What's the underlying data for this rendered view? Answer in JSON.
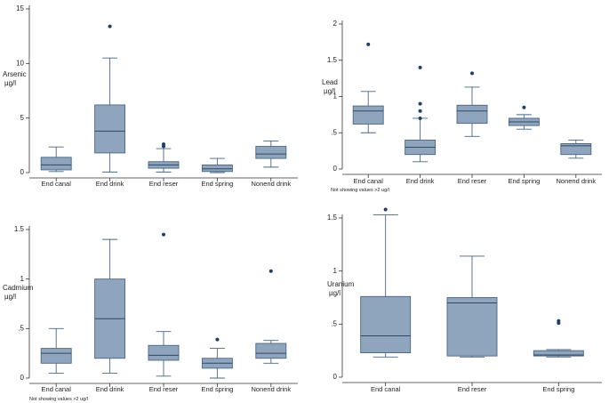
{
  "chart_data": [
    {
      "type": "box",
      "ylabel_lines": [
        "Arsenic",
        "µg/l"
      ],
      "yticks": [
        "0",
        "5",
        "10",
        "15"
      ],
      "ytick_values": [
        0,
        5,
        10,
        15
      ],
      "ylim": [
        0,
        15
      ],
      "note": "",
      "categories": [
        "End canal",
        "End drink",
        "End reser",
        "End spring",
        "Nonend drink"
      ],
      "boxes": [
        {
          "low": 0.1,
          "q1": 0.25,
          "median": 0.7,
          "q3": 1.4,
          "high": 2.35,
          "outliers": []
        },
        {
          "low": 0.05,
          "q1": 1.8,
          "median": 3.8,
          "q3": 6.2,
          "high": 10.5,
          "outliers": [
            13.4
          ]
        },
        {
          "low": 0.05,
          "q1": 0.4,
          "median": 0.7,
          "q3": 1.0,
          "high": 2.2,
          "outliers": [
            2.4,
            2.6
          ]
        },
        {
          "low": 0.0,
          "q1": 0.1,
          "median": 0.35,
          "q3": 0.7,
          "high": 1.3,
          "outliers": []
        },
        {
          "low": 0.5,
          "q1": 1.3,
          "median": 1.7,
          "q3": 2.4,
          "high": 2.9,
          "outliers": []
        }
      ]
    },
    {
      "type": "box",
      "ylabel_lines": [
        "Lead",
        "µg/l"
      ],
      "yticks": [
        "0",
        ".5",
        "1",
        "1.5",
        "2"
      ],
      "ytick_values": [
        0,
        0.5,
        1,
        1.5,
        2
      ],
      "ylim": [
        0,
        2
      ],
      "note": "Not showing values >2 ug/l",
      "categories": [
        "End canal",
        "End drink",
        "End reser",
        "End spring",
        "Nonend drink"
      ],
      "boxes": [
        {
          "low": 0.5,
          "q1": 0.62,
          "median": 0.8,
          "q3": 0.87,
          "high": 1.07,
          "outliers": [
            1.72
          ]
        },
        {
          "low": 0.1,
          "q1": 0.2,
          "median": 0.3,
          "q3": 0.4,
          "high": 0.7,
          "outliers": [
            0.7,
            0.8,
            0.9,
            1.4
          ]
        },
        {
          "low": 0.45,
          "q1": 0.63,
          "median": 0.8,
          "q3": 0.88,
          "high": 1.13,
          "outliers": [
            1.32
          ]
        },
        {
          "low": 0.55,
          "q1": 0.6,
          "median": 0.65,
          "q3": 0.7,
          "high": 0.75,
          "outliers": [
            0.85
          ]
        },
        {
          "low": 0.15,
          "q1": 0.2,
          "median": 0.32,
          "q3": 0.35,
          "high": 0.4,
          "outliers": []
        }
      ]
    },
    {
      "type": "box",
      "ylabel_lines": [
        "Cadmium",
        "µg/l"
      ],
      "yticks": [
        "0",
        ".5",
        "1",
        "1.5"
      ],
      "ytick_values": [
        0,
        0.5,
        1,
        1.5
      ],
      "ylim": [
        0,
        1.5
      ],
      "note": "Not showing values >2 ug/l",
      "categories": [
        "End canal",
        "End drink",
        "End reser",
        "End spring",
        "Nonend drink"
      ],
      "boxes": [
        {
          "low": 0.05,
          "q1": 0.15,
          "median": 0.25,
          "q3": 0.3,
          "high": 0.5,
          "outliers": []
        },
        {
          "low": 0.05,
          "q1": 0.2,
          "median": 0.6,
          "q3": 1.0,
          "high": 1.4,
          "outliers": []
        },
        {
          "low": 0.02,
          "q1": 0.18,
          "median": 0.23,
          "q3": 0.33,
          "high": 0.47,
          "outliers": [
            1.45
          ]
        },
        {
          "low": 0.0,
          "q1": 0.1,
          "median": 0.15,
          "q3": 0.2,
          "high": 0.3,
          "outliers": [
            0.39
          ]
        },
        {
          "low": 0.15,
          "q1": 0.2,
          "median": 0.25,
          "q3": 0.35,
          "high": 0.38,
          "outliers": [
            1.08
          ]
        }
      ]
    },
    {
      "type": "box",
      "ylabel_lines": [
        "Uranium",
        "µg/l"
      ],
      "yticks": [
        "0",
        ".5",
        "1",
        "1.5"
      ],
      "ytick_values": [
        0,
        0.5,
        1,
        1.5
      ],
      "ylim": [
        0,
        1.5
      ],
      "note": "",
      "categories": [
        "End canal",
        "End reser",
        "End spring"
      ],
      "boxes": [
        {
          "low": 0.19,
          "q1": 0.23,
          "median": 0.39,
          "q3": 0.76,
          "high": 1.53,
          "outliers": [
            1.58
          ]
        },
        {
          "low": 0.19,
          "q1": 0.2,
          "median": 0.7,
          "q3": 0.75,
          "high": 1.14,
          "outliers": []
        },
        {
          "low": 0.19,
          "q1": 0.2,
          "median": 0.21,
          "q3": 0.25,
          "high": 0.26,
          "outliers": [
            0.51,
            0.53
          ]
        }
      ]
    }
  ]
}
